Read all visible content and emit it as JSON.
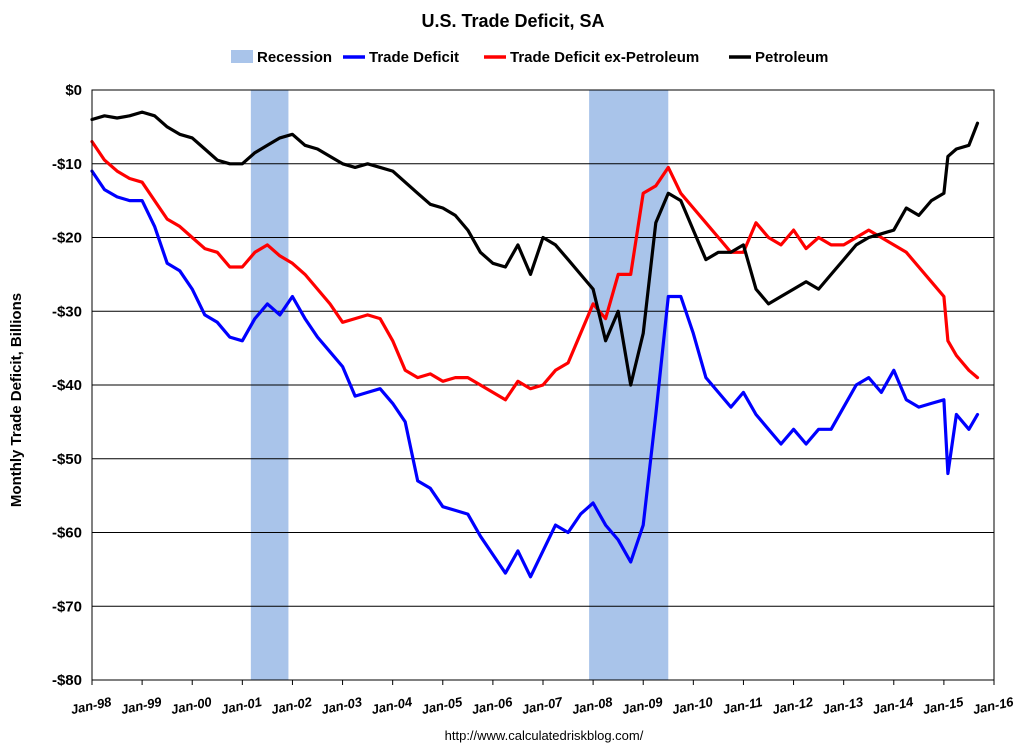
{
  "chart_data": {
    "type": "line",
    "title": "U.S. Trade Deficit, SA",
    "ylabel": "Monthly Trade Deficit, Billions",
    "xlabel": "",
    "source": "http://www.calculatedriskblog.com/",
    "ylim": [
      -80,
      0
    ],
    "xlim": [
      1998.0,
      2016.0
    ],
    "y_ticks": [
      0,
      -10,
      -20,
      -30,
      -40,
      -50,
      -60,
      -70,
      -80
    ],
    "y_tick_labels": [
      "$0",
      "-$10",
      "-$20",
      "-$30",
      "-$40",
      "-$50",
      "-$60",
      "-$70",
      "-$80"
    ],
    "x_tick_labels": [
      "Jan-98",
      "Jan-99",
      "Jan-00",
      "Jan-01",
      "Jan-02",
      "Jan-03",
      "Jan-04",
      "Jan-05",
      "Jan-06",
      "Jan-07",
      "Jan-08",
      "Jan-09",
      "Jan-10",
      "Jan-11",
      "Jan-12",
      "Jan-13",
      "Jan-14",
      "Jan-15",
      "Jan-16"
    ],
    "grid": "horizontal",
    "legend_position": "top",
    "recession_label": "Recession",
    "recession_color": "#a9c4ea",
    "recessions": [
      [
        2001.17,
        2001.92
      ],
      [
        2007.92,
        2009.5
      ]
    ],
    "series": [
      {
        "name": "Trade Deficit",
        "color": "#0000ff",
        "x": [
          1998.0,
          1998.25,
          1998.5,
          1998.75,
          1999.0,
          1999.25,
          1999.5,
          1999.75,
          2000.0,
          2000.25,
          2000.5,
          2000.75,
          2001.0,
          2001.25,
          2001.5,
          2001.75,
          2002.0,
          2002.25,
          2002.5,
          2002.75,
          2003.0,
          2003.25,
          2003.5,
          2003.75,
          2004.0,
          2004.25,
          2004.5,
          2004.75,
          2005.0,
          2005.25,
          2005.5,
          2005.75,
          2006.0,
          2006.25,
          2006.5,
          2006.75,
          2007.0,
          2007.25,
          2007.5,
          2007.75,
          2008.0,
          2008.25,
          2008.5,
          2008.75,
          2009.0,
          2009.25,
          2009.5,
          2009.75,
          2010.0,
          2010.25,
          2010.5,
          2010.75,
          2011.0,
          2011.25,
          2011.5,
          2011.75,
          2012.0,
          2012.25,
          2012.5,
          2012.75,
          2013.0,
          2013.25,
          2013.5,
          2013.75,
          2014.0,
          2014.25,
          2014.5,
          2014.75,
          2015.0,
          2015.08,
          2015.25,
          2015.5,
          2015.67
        ],
        "values": [
          -11,
          -13.5,
          -14.5,
          -15,
          -15,
          -18.5,
          -23.5,
          -24.5,
          -27,
          -30.5,
          -31.5,
          -33.5,
          -34,
          -31,
          -29,
          -30.5,
          -28,
          -31,
          -33.5,
          -35.5,
          -37.5,
          -41.5,
          -41,
          -40.5,
          -42.5,
          -45,
          -53,
          -54,
          -56.5,
          -57,
          -57.5,
          -60.5,
          -63,
          -65.5,
          -62.5,
          -66,
          -62.5,
          -59,
          -60,
          -57.5,
          -56,
          -59,
          -61,
          -64,
          -59,
          -44,
          -28,
          -28,
          -33,
          -39,
          -41,
          -43,
          -41,
          -44,
          -46,
          -48,
          -46,
          -48,
          -46,
          -46,
          -43,
          -40,
          -39,
          -41,
          -38,
          -42,
          -43,
          -42.5,
          -42,
          -52,
          -44,
          -46,
          -44
        ]
      },
      {
        "name": "Trade Deficit ex-Petroleum",
        "color": "#ff0000",
        "x": [
          1998.0,
          1998.25,
          1998.5,
          1998.75,
          1999.0,
          1999.25,
          1999.5,
          1999.75,
          2000.0,
          2000.25,
          2000.5,
          2000.75,
          2001.0,
          2001.25,
          2001.5,
          2001.75,
          2002.0,
          2002.25,
          2002.5,
          2002.75,
          2003.0,
          2003.25,
          2003.5,
          2003.75,
          2004.0,
          2004.25,
          2004.5,
          2004.75,
          2005.0,
          2005.25,
          2005.5,
          2005.75,
          2006.0,
          2006.25,
          2006.5,
          2006.75,
          2007.0,
          2007.25,
          2007.5,
          2007.75,
          2008.0,
          2008.25,
          2008.5,
          2008.75,
          2009.0,
          2009.25,
          2009.5,
          2009.75,
          2010.0,
          2010.25,
          2010.5,
          2010.75,
          2011.0,
          2011.25,
          2011.5,
          2011.75,
          2012.0,
          2012.25,
          2012.5,
          2012.75,
          2013.0,
          2013.25,
          2013.5,
          2013.75,
          2014.0,
          2014.25,
          2014.5,
          2014.75,
          2015.0,
          2015.08,
          2015.25,
          2015.5,
          2015.67
        ],
        "values": [
          -7,
          -9.5,
          -11,
          -12,
          -12.5,
          -15,
          -17.5,
          -18.5,
          -20,
          -21.5,
          -22,
          -24,
          -24,
          -22,
          -21,
          -22.5,
          -23.5,
          -25,
          -27,
          -29,
          -31.5,
          -31,
          -30.5,
          -31,
          -34,
          -38,
          -39,
          -38.5,
          -39.5,
          -39,
          -39,
          -40,
          -41,
          -42,
          -39.5,
          -40.5,
          -40,
          -38,
          -37,
          -33,
          -29,
          -31,
          -25,
          -25,
          -14,
          -13,
          -10.5,
          -14,
          -16,
          -18,
          -20,
          -22,
          -22,
          -18,
          -20,
          -21,
          -19,
          -21.5,
          -20,
          -21,
          -21,
          -20,
          -19,
          -20,
          -21,
          -22,
          -24,
          -26,
          -28,
          -34,
          -36,
          -38,
          -39
        ]
      },
      {
        "name": "Petroleum",
        "color": "#000000",
        "x": [
          1998.0,
          1998.25,
          1998.5,
          1998.75,
          1999.0,
          1999.25,
          1999.5,
          1999.75,
          2000.0,
          2000.25,
          2000.5,
          2000.75,
          2001.0,
          2001.25,
          2001.5,
          2001.75,
          2002.0,
          2002.25,
          2002.5,
          2002.75,
          2003.0,
          2003.25,
          2003.5,
          2003.75,
          2004.0,
          2004.25,
          2004.5,
          2004.75,
          2005.0,
          2005.25,
          2005.5,
          2005.75,
          2006.0,
          2006.25,
          2006.5,
          2006.75,
          2007.0,
          2007.25,
          2007.5,
          2007.75,
          2008.0,
          2008.25,
          2008.5,
          2008.75,
          2009.0,
          2009.25,
          2009.5,
          2009.75,
          2010.0,
          2010.25,
          2010.5,
          2010.75,
          2011.0,
          2011.25,
          2011.5,
          2011.75,
          2012.0,
          2012.25,
          2012.5,
          2012.75,
          2013.0,
          2013.25,
          2013.5,
          2013.75,
          2014.0,
          2014.25,
          2014.5,
          2014.75,
          2015.0,
          2015.08,
          2015.25,
          2015.5,
          2015.67
        ],
        "values": [
          -4,
          -3.5,
          -3.8,
          -3.5,
          -3,
          -3.5,
          -5,
          -6,
          -6.5,
          -8,
          -9.5,
          -10,
          -10,
          -8.5,
          -7.5,
          -6.5,
          -6,
          -7.5,
          -8,
          -9,
          -10,
          -10.5,
          -10,
          -10.5,
          -11,
          -12.5,
          -14,
          -15.5,
          -16,
          -17,
          -19,
          -22,
          -23.5,
          -24,
          -21,
          -25,
          -20,
          -21,
          -23,
          -25,
          -27,
          -34,
          -30,
          -40,
          -33,
          -18,
          -14,
          -15,
          -19,
          -23,
          -22,
          -22,
          -21,
          -27,
          -29,
          -28,
          -27,
          -26,
          -27,
          -25,
          -23,
          -21,
          -20,
          -19.5,
          -19,
          -16,
          -17,
          -15,
          -14,
          -9,
          -8,
          -7.5,
          -4.5
        ]
      }
    ]
  }
}
